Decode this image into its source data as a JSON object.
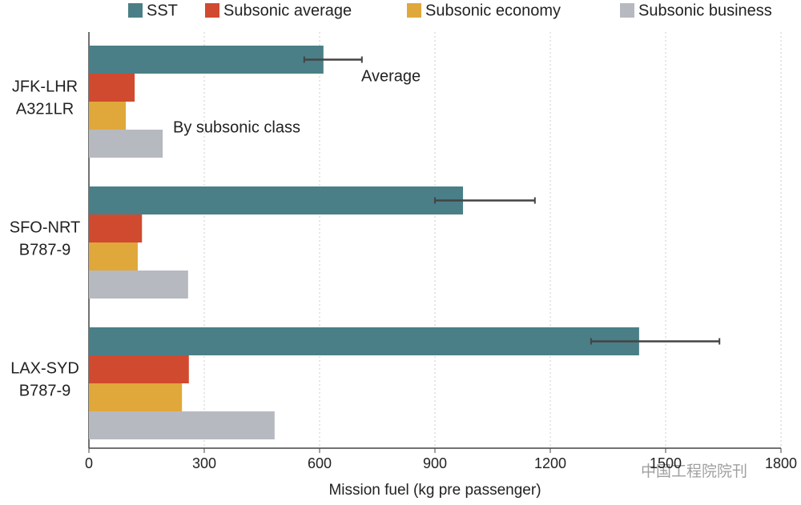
{
  "chart_data": {
    "type": "barh",
    "categories": [
      [
        "JFK-LHR",
        "A321LR"
      ],
      [
        "SFO-NRT",
        "B787-9"
      ],
      [
        "LAX-SYD",
        "B787-9"
      ]
    ],
    "series": [
      {
        "name": "SST",
        "color": "#4a7f87",
        "values": [
          610,
          973,
          1431
        ],
        "error_low": [
          560,
          900,
          1306
        ],
        "error_high": [
          710,
          1160,
          1640
        ]
      },
      {
        "name": "Subsonic average",
        "color": "#d04a2f",
        "values": [
          119,
          138,
          260
        ]
      },
      {
        "name": "Subsonic economy",
        "color": "#e0a83a",
        "values": [
          96,
          127,
          242
        ]
      },
      {
        "name": "Subsonic business",
        "color": "#b7b9c0",
        "values": [
          192,
          258,
          483
        ]
      }
    ],
    "xlabel": "Mission fuel (kg pre passenger)",
    "xlim": [
      0,
      1800
    ],
    "xticks": [
      0,
      300,
      600,
      900,
      1200,
      1500,
      1800
    ],
    "grid": true,
    "annotations": [
      "Average",
      "By subsonic class"
    ],
    "watermark": "中国工程院院刊"
  }
}
